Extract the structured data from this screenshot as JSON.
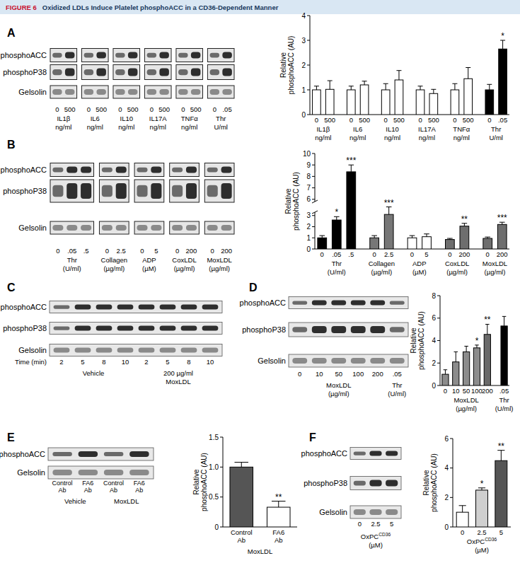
{
  "figure_label": "FIGURE 6",
  "title": "Oxidized LDLs Induce Platelet phosphoACC in a CD36-Dependent Manner",
  "panels": [
    "A",
    "B",
    "C",
    "D",
    "E",
    "F"
  ],
  "blots": [
    {
      "panel": "A",
      "rows": [
        "phosphoACC",
        "phosphoP38",
        "Gelsolin"
      ],
      "groups": [
        {
          "label": [
            "IL1β",
            "ng/ml"
          ],
          "lanes": [
            "0",
            "500"
          ]
        },
        {
          "label": [
            "IL6",
            "ng/ml"
          ],
          "lanes": [
            "0",
            "500"
          ]
        },
        {
          "label": [
            "IL10",
            "ng/ml"
          ],
          "lanes": [
            "0",
            "500"
          ]
        },
        {
          "label": [
            "IL17A",
            "ng/ml"
          ],
          "lanes": [
            "0",
            "500"
          ]
        },
        {
          "label": [
            "TNFα",
            "ng/ml"
          ],
          "lanes": [
            "0",
            "500"
          ]
        },
        {
          "label": [
            "Thr",
            "U/ml"
          ],
          "lanes": [
            "0",
            ".05"
          ]
        }
      ]
    },
    {
      "panel": "B",
      "rows": [
        "phosphoACC",
        "phosphoP38",
        "Gelsolin"
      ],
      "groups": [
        {
          "label": [
            "Thr",
            "(U/ml)"
          ],
          "lanes": [
            "0",
            ".05",
            ".5"
          ]
        },
        {
          "label": [
            "Collagen",
            "(µg/ml)"
          ],
          "lanes": [
            "0",
            "2.5"
          ]
        },
        {
          "label": [
            "ADP",
            "(µM)"
          ],
          "lanes": [
            "0",
            "5"
          ]
        },
        {
          "label": [
            "CoxLDL",
            "(µg/ml)"
          ],
          "lanes": [
            "0",
            "200"
          ]
        },
        {
          "label": [
            "MoxLDL",
            "(µg/ml)"
          ],
          "lanes": [
            "0",
            "200"
          ]
        }
      ]
    },
    {
      "panel": "C",
      "rows": [
        "phosphoACC",
        "phosphoP38",
        "Gelsolin"
      ],
      "lane_axis_label": "Time (min)",
      "groups": [
        {
          "label": [
            "Vehicle"
          ],
          "lanes": [
            "2",
            "5",
            "8",
            "10"
          ]
        },
        {
          "label": [
            "200 µg/ml",
            "MoxLDL"
          ],
          "lanes": [
            "2",
            "5",
            "8",
            "10"
          ]
        }
      ]
    },
    {
      "panel": "D",
      "rows": [
        "phosphoACC",
        "phosphoP38",
        "Gelsolin"
      ],
      "groups": [
        {
          "label": [
            "MoxLDL",
            "(µg/ml)"
          ],
          "lanes": [
            "0",
            "10",
            "50",
            "100",
            "200"
          ]
        },
        {
          "label": [
            "Thr",
            "(U/ml)"
          ],
          "lanes": [
            ".05"
          ]
        }
      ]
    },
    {
      "panel": "E",
      "rows": [
        "phosphoACC",
        "Gelsolin"
      ],
      "groups": [
        {
          "label": [
            "Vehicle"
          ],
          "lanes": [
            "Control Ab",
            "FA6 Ab"
          ]
        },
        {
          "label": [
            "MoxLDL"
          ],
          "lanes": [
            "Control Ab",
            "FA6 Ab"
          ]
        }
      ]
    },
    {
      "panel": "F",
      "rows": [
        "phosphoACC",
        "phosphoP38",
        "Gelsolin"
      ],
      "groups": [
        {
          "label": [
            "OxPC",
            "(µM)"
          ],
          "label_sup": "CD36",
          "lanes": [
            "0",
            "2.5",
            "5"
          ]
        }
      ]
    }
  ],
  "chart_data": [
    {
      "panel": "A",
      "type": "bar",
      "y_label": [
        "Relative",
        "phosphoACC (AU)"
      ],
      "ylim": [
        0,
        4
      ],
      "yticks": [
        0,
        1,
        2,
        3,
        4
      ],
      "groups": [
        {
          "label": [
            "IL1β",
            "ng/ml"
          ],
          "categories": [
            "0",
            "500"
          ],
          "values": [
            1,
            1.02
          ],
          "errors": [
            0.15,
            0.35
          ],
          "colors": [
            "#ffffff",
            "#ffffff"
          ],
          "annotations": [
            null,
            null
          ]
        },
        {
          "label": [
            "IL6",
            "ng/ml"
          ],
          "categories": [
            "0",
            "500"
          ],
          "values": [
            1,
            1.2
          ],
          "errors": [
            0.15,
            0.15
          ],
          "colors": [
            "#ffffff",
            "#ffffff"
          ],
          "annotations": [
            null,
            null
          ]
        },
        {
          "label": [
            "IL10",
            "ng/ml"
          ],
          "categories": [
            "0",
            "500"
          ],
          "values": [
            1,
            1.4
          ],
          "errors": [
            0.25,
            0.38
          ],
          "colors": [
            "#ffffff",
            "#ffffff"
          ],
          "annotations": [
            null,
            null
          ]
        },
        {
          "label": [
            "IL17A",
            "ng/ml"
          ],
          "categories": [
            "0",
            "500"
          ],
          "values": [
            1,
            0.85
          ],
          "errors": [
            0.15,
            0.17
          ],
          "colors": [
            "#ffffff",
            "#ffffff"
          ],
          "annotations": [
            null,
            null
          ]
        },
        {
          "label": [
            "TNFα",
            "ng/ml"
          ],
          "categories": [
            "0",
            "500"
          ],
          "values": [
            1,
            1.45
          ],
          "errors": [
            0.25,
            0.45
          ],
          "colors": [
            "#ffffff",
            "#ffffff"
          ],
          "annotations": [
            null,
            null
          ]
        },
        {
          "label": [
            "Thr",
            "U/ml"
          ],
          "categories": [
            "0",
            ".05"
          ],
          "values": [
            1,
            2.65
          ],
          "errors": [
            0.22,
            0.35
          ],
          "colors": [
            "#000000",
            "#000000"
          ],
          "annotations": [
            null,
            "*"
          ]
        }
      ]
    },
    {
      "panel": "B",
      "type": "bar",
      "y_label": [
        "Relative",
        "phosphoACC (AU)"
      ],
      "ylim": [
        0,
        10
      ],
      "y_break": [
        3.3,
        5.8
      ],
      "yticks": [
        0,
        1,
        2,
        3,
        6,
        7,
        8,
        9,
        10
      ],
      "groups": [
        {
          "label": [
            "Thr",
            "(U/ml)"
          ],
          "categories": [
            "0",
            ".05",
            ".5"
          ],
          "values": [
            1,
            2.6,
            8.4
          ],
          "errors": [
            0.2,
            0.3,
            0.6
          ],
          "colors": [
            "#000000",
            "#000000",
            "#000000"
          ],
          "annotations": [
            null,
            "*",
            "***"
          ]
        },
        {
          "label": [
            "Collagen",
            "(µg/ml)"
          ],
          "categories": [
            "0",
            "2.5"
          ],
          "values": [
            1,
            3.1
          ],
          "errors": [
            0.2,
            0.3
          ],
          "colors": [
            "#777777",
            "#777777"
          ],
          "annotations": [
            null,
            "***"
          ]
        },
        {
          "label": [
            "ADP",
            "(µM)"
          ],
          "categories": [
            "0",
            "5"
          ],
          "values": [
            1,
            1.1
          ],
          "errors": [
            0.2,
            0.25
          ],
          "colors": [
            "#ffffff",
            "#ffffff"
          ],
          "annotations": [
            null,
            null
          ]
        },
        {
          "label": [
            "CoxLDL",
            "(µg/ml)"
          ],
          "categories": [
            "0",
            "200"
          ],
          "values": [
            0.85,
            2.05
          ],
          "errors": [
            0.1,
            0.25
          ],
          "colors": [
            "#6e6e6e",
            "#6e6e6e"
          ],
          "annotations": [
            null,
            "**"
          ]
        },
        {
          "label": [
            "MoxLDL",
            "(µg/ml)"
          ],
          "categories": [
            "0",
            "200"
          ],
          "values": [
            0.95,
            2.2
          ],
          "errors": [
            0.12,
            0.2
          ],
          "colors": [
            "#6e6e6e",
            "#6e6e6e"
          ],
          "annotations": [
            null,
            "***"
          ]
        }
      ]
    },
    {
      "panel": "D",
      "type": "bar",
      "y_label": [
        "Relative",
        "phosphoACC (AU)"
      ],
      "ylim": [
        0,
        8
      ],
      "yticks": [
        0,
        2,
        4,
        6,
        8
      ],
      "groups": [
        {
          "label": [
            "MoxLDL",
            "(µg/ml)"
          ],
          "categories": [
            "0",
            "10",
            "50",
            "100",
            "200"
          ],
          "values": [
            1,
            2.1,
            3,
            3.35,
            4.55
          ],
          "errors": [
            0.4,
            0.9,
            0.5,
            0.25,
            0.9
          ],
          "colors": [
            "#8c8c8c",
            "#8c8c8c",
            "#8c8c8c",
            "#8c8c8c",
            "#6a6a6a"
          ],
          "annotations": [
            null,
            null,
            null,
            "*",
            "**"
          ]
        },
        {
          "label": [
            "Thr",
            "(U/ml)"
          ],
          "categories": [
            ".05"
          ],
          "values": [
            5.3
          ],
          "errors": [
            0.85
          ],
          "colors": [
            "#000000"
          ],
          "annotations": [
            null
          ]
        }
      ]
    },
    {
      "panel": "E",
      "type": "bar",
      "y_label": [
        "Relative",
        "phosphoACC (AU)"
      ],
      "ylim": [
        0,
        1.5
      ],
      "yticks": [
        0,
        0.5,
        {
          "value": 1,
          "label": "1.0"
        },
        1.5
      ],
      "groups": [
        {
          "label": [
            "MoxLDL"
          ],
          "categories": [
            "Control Ab",
            "FA6 Ab"
          ],
          "values": [
            1,
            0.33
          ],
          "errors": [
            0.08,
            0.1
          ],
          "colors": [
            "#555555",
            "#ffffff"
          ],
          "annotations": [
            null,
            "**"
          ]
        }
      ]
    },
    {
      "panel": "F",
      "type": "bar",
      "y_label": [
        "Relative",
        "phosphoACC (AU)"
      ],
      "ylim": [
        0,
        6
      ],
      "yticks": [
        0,
        2,
        4,
        6
      ],
      "groups": [
        {
          "label": [
            "OxPC",
            "(µM)"
          ],
          "label_sup": "CD36",
          "categories": [
            "0",
            "2.5",
            "5"
          ],
          "values": [
            1,
            2.5,
            4.5
          ],
          "errors": [
            0.45,
            0.15,
            0.7
          ],
          "colors": [
            "#ffffff",
            "#cfcfcf",
            "#555555"
          ],
          "annotations": [
            null,
            "*",
            "**"
          ]
        }
      ]
    }
  ]
}
